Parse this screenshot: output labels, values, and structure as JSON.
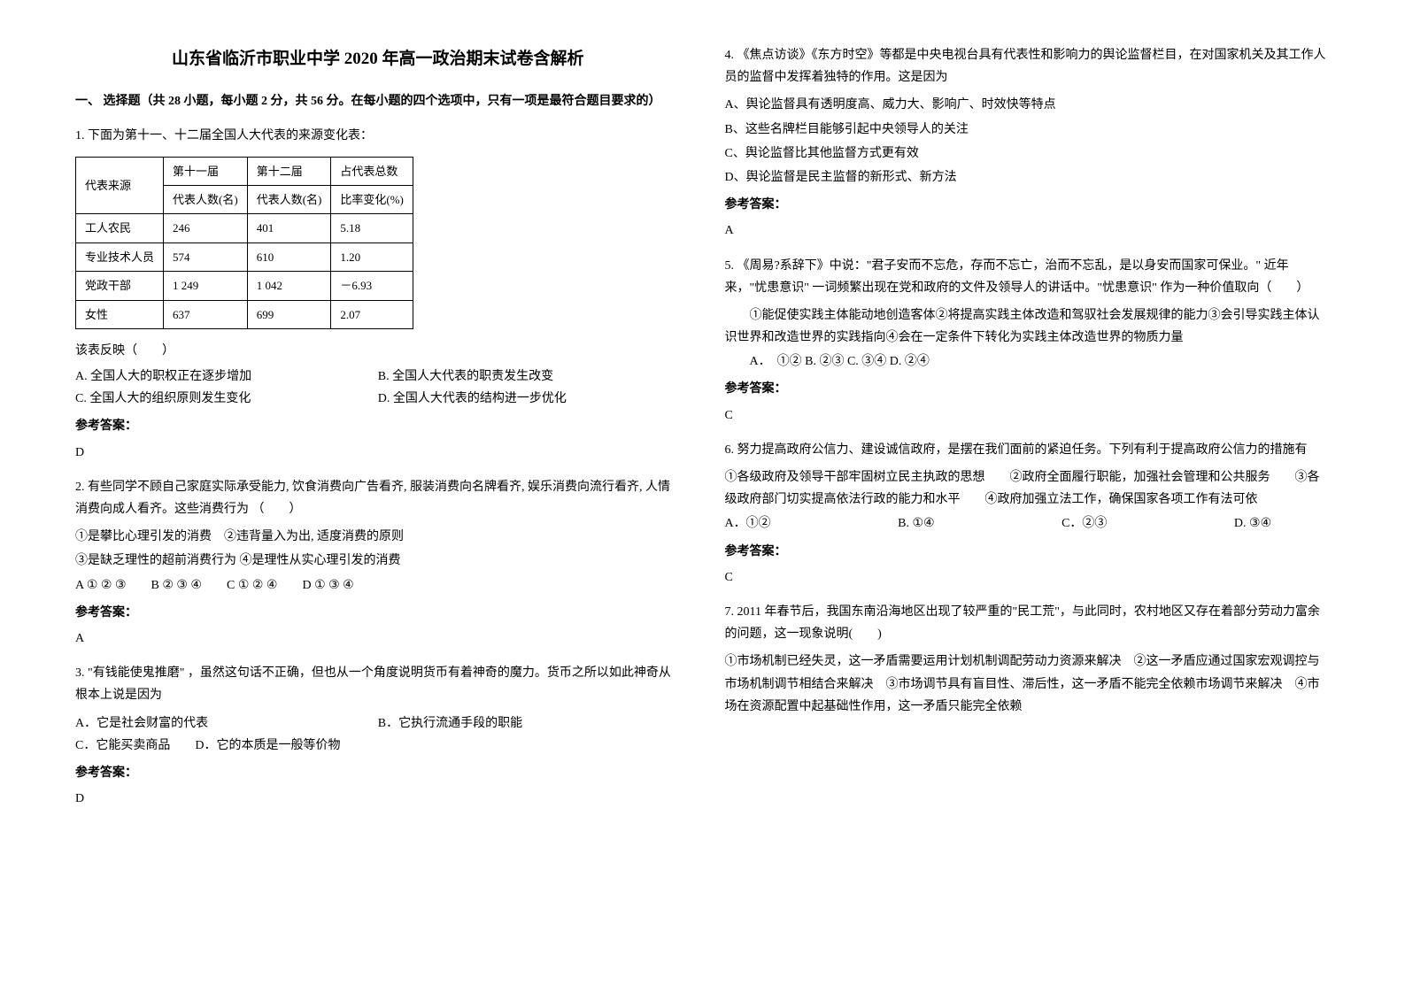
{
  "title": "山东省临沂市职业中学 2020 年高一政治期末试卷含解析",
  "section1": "一、 选择题（共 28 小题，每小题 2 分，共 56 分。在每小题的四个选项中，只有一项是最符合题目要求的）",
  "answer_label": "参考答案：",
  "q1": {
    "stem": "1. 下面为第十一、十二届全国人大代表的来源变化表：",
    "table": {
      "h_src": "代表来源",
      "h_11": "第十一届",
      "h_12": "第十二届",
      "h_tot": "占代表总数",
      "h_cnt": "代表人数(名)",
      "h_pct": "比率变化(%)",
      "rows": [
        {
          "src": "工人农民",
          "c11": "246",
          "c12": "401",
          "pct": "5.18"
        },
        {
          "src": "专业技术人员",
          "c11": "574",
          "c12": "610",
          "pct": "1.20"
        },
        {
          "src": "党政干部",
          "c11": "1 249",
          "c12": "1 042",
          "pct": "－6.93"
        },
        {
          "src": "女性",
          "c11": "637",
          "c12": "699",
          "pct": "2.07"
        }
      ]
    },
    "after_table": "该表反映（　　）",
    "optA": "A. 全国人大的职权正在逐步增加",
    "optB": "B. 全国人大代表的职责发生改变",
    "optC": "C. 全国人大的组织原则发生变化",
    "optD": "D. 全国人大代表的结构进一步优化",
    "answer": "D"
  },
  "q2": {
    "stem": "2. 有些同学不顾自己家庭实际承受能力, 饮食消费向广告看齐, 服装消费向名牌看齐, 娱乐消费向流行看齐, 人情消费向成人看齐。这些消费行为 （　　）",
    "line1": "①是攀比心理引发的消费　②违背量入为出, 适度消费的原则",
    "line2": "③是缺乏理性的超前消费行为 ④是理性从实心理引发的消费",
    "opts": "A ① ② ③　　B ② ③ ④　　C ① ② ④　　D ① ③ ④",
    "answer": "A"
  },
  "q3": {
    "stem": "3. \"有钱能使鬼推磨\" ，虽然这句话不正确，但也从一个角度说明货币有着神奇的魔力。货币之所以如此神奇从根本上说是因为",
    "optA": "A．它是社会财富的代表",
    "optB": "B．它执行流通手段的职能",
    "optCD": "C．它能买卖商品　　D．它的本质是一般等价物",
    "answer": "D"
  },
  "q4": {
    "stem": "4. 《焦点访谈》《东方时空》等都是中央电视台具有代表性和影响力的舆论监督栏目，在对国家机关及其工作人员的监督中发挥着独特的作用。这是因为",
    "optA": "A、舆论监督具有透明度高、威力大、影响广、时效快等特点",
    "optB": "B、这些名牌栏目能够引起中央领导人的关注",
    "optC": "C、舆论监督比其他监督方式更有效",
    "optD": "D、舆论监督是民主监督的新形式、新方法",
    "answer": "A"
  },
  "q5": {
    "stem": "5. 《周易?系辞下》中说：\"君子安而不忘危，存而不忘亡，治而不忘乱，是以身安而国家可保业。\" 近年来，\"忧患意识\" 一词频繁出现在党和政府的文件及领导人的讲话中。\"忧患意识\" 作为一种价值取向（　　）",
    "line1": "①能促使实践主体能动地创造客体②将提高实践主体改造和驾驭社会发展规律的能力③会引导实践主体认识世界和改造世界的实践指向④会在一定条件下转化为实践主体改造世界的物质力量",
    "opts": "A．　①② B. ②③ C. ③④ D. ②④",
    "answer": "C"
  },
  "q6": {
    "stem": "6. 努力提高政府公信力、建设诚信政府，是摆在我们面前的紧迫任务。下列有利于提高政府公信力的措施有",
    "line1": "①各级政府及领导干部牢固树立民主执政的思想　　②政府全面履行职能，加强社会管理和公共服务　　③各级政府部门切实提高依法行政的能力和水平　　④政府加强立法工作，确保国家各项工作有法可依",
    "optA": "A．①②",
    "optB": "B. ①④",
    "optC": "C．②③",
    "optD": "D. ③④",
    "answer": "C"
  },
  "q7": {
    "stem": "7. 2011 年春节后，我国东南沿海地区出现了较严重的\"民工荒\"，与此同时，农村地区又存在着部分劳动力富余的问题，这一现象说明(　　)",
    "line1": "①市场机制已经失灵，这一矛盾需要运用计划机制调配劳动力资源来解决　②这一矛盾应通过国家宏观调控与市场机制调节相结合来解决　③市场调节具有盲目性、滞后性，这一矛盾不能完全依赖市场调节来解决　④市场在资源配置中起基础性作用，这一矛盾只能完全依赖"
  },
  "style": {
    "page_bg": "#ffffff",
    "text_color": "#000000",
    "border_color": "#000000",
    "title_fontsize": 19,
    "body_fontsize": 14,
    "table_fontsize": 13,
    "line_height": 1.8
  }
}
